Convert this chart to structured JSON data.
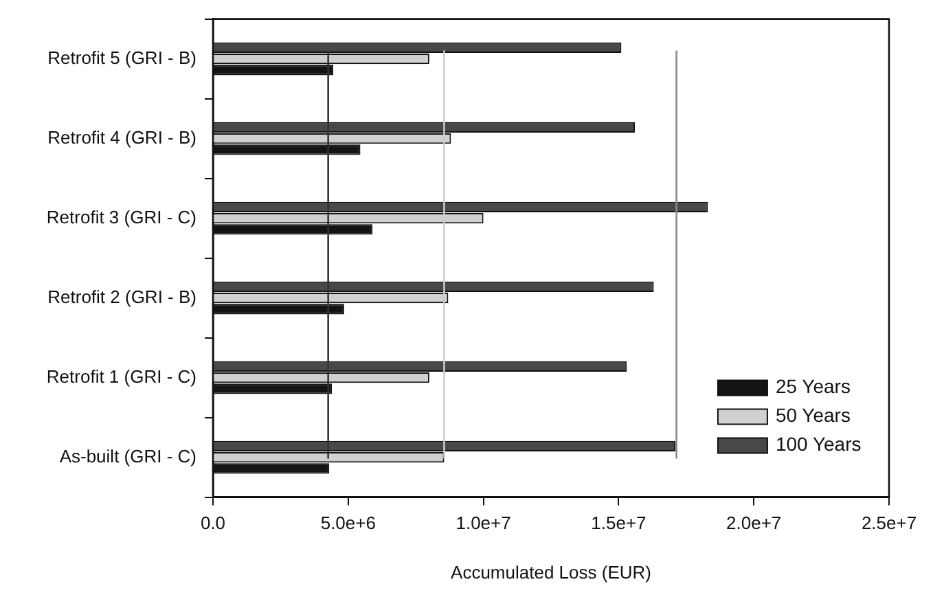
{
  "chart_data": {
    "type": "bar",
    "orientation": "horizontal",
    "xlabel": "Accumulated Loss (EUR)",
    "categories": [
      "Retrofit 5 (GRI - B)",
      "Retrofit 4 (GRI - B)",
      "Retrofit 3 (GRI - C)",
      "Retrofit 2 (GRI - B)",
      "Retrofit 1 (GRI - C)",
      "As-built (GRI - C)"
    ],
    "series": [
      {
        "name": "25 Years",
        "color": "#141414",
        "values": [
          4450000,
          5450000,
          5900000,
          4850000,
          4400000,
          4300000
        ]
      },
      {
        "name": "50 Years",
        "color": "#d0d0d0",
        "values": [
          8000000,
          8800000,
          10000000,
          8700000,
          8000000,
          8550000
        ]
      },
      {
        "name": "100 Years",
        "color": "#484848",
        "values": [
          15100000,
          15600000,
          18300000,
          16300000,
          15300000,
          17100000
        ]
      }
    ],
    "xlim": [
      0,
      25000000
    ],
    "xticks": [
      {
        "value": 0,
        "label": "0.0"
      },
      {
        "value": 5000000,
        "label": "5.0e+6"
      },
      {
        "value": 10000000,
        "label": "1.0e+7"
      },
      {
        "value": 15000000,
        "label": "1.5e+7"
      },
      {
        "value": 20000000,
        "label": "2.0e+7"
      },
      {
        "value": 25000000,
        "label": "2.5e+7"
      }
    ],
    "ref_lines": [
      {
        "axis": "x",
        "value": 4260000,
        "color": "#333333"
      },
      {
        "axis": "x",
        "value": 8550000,
        "color": "#cccccc"
      },
      {
        "axis": "x",
        "value": 17140000,
        "color": "#888888"
      }
    ],
    "grid": false,
    "legend": "bottom right"
  }
}
